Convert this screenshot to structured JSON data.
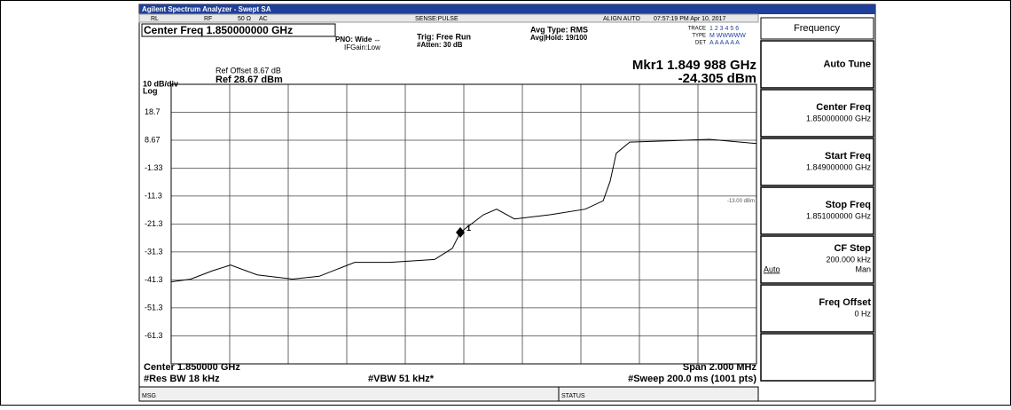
{
  "title_bar": "Agilent Spectrum Analyzer - Swept SA",
  "status_bar": {
    "rl": "RL",
    "rf": "RF",
    "impedance": "50 Ω",
    "coupling": "AC",
    "sense": "SENSE:PULSE",
    "align": "ALIGN AUTO",
    "datetime": "07:57:19 PM Apr 10, 2017"
  },
  "header": {
    "center_freq": "Center Freq 1.850000000 GHz",
    "pno": "PNO: Wide ↔",
    "ifgain": "IFGain:Low",
    "trig": "Trig: Free Run",
    "atten": "#Atten: 30 dB",
    "avg_type": "Avg Type: RMS",
    "avg_hold": "Avg|Hold: 19/100",
    "trace_label": "TRACE",
    "trace_nums": "1 2 3 4 5 6",
    "type_label": "TYPE",
    "type_val": "M WWWWW",
    "det_label": "DET",
    "det_val": "A A A A A A",
    "ref_offset": "Ref Offset 8.67 dB",
    "ref_level": "Ref 28.67 dBm",
    "scale": "10 dB/div",
    "log": "Log",
    "marker_freq": "Mkr1 1.849 988 GHz",
    "marker_amp": "-24.305 dBm"
  },
  "plot": {
    "xlim": [
      1.849,
      1.851
    ],
    "ylim": [
      -71.33,
      28.67
    ],
    "yticks": [
      18.7,
      8.67,
      -1.33,
      -11.3,
      -21.3,
      -31.3,
      -41.3,
      -51.3,
      -61.3
    ],
    "x": [
      1.849,
      1.849067,
      1.849142,
      1.849203,
      1.849294,
      1.849415,
      1.849506,
      1.849627,
      1.849748,
      1.8499,
      1.849961,
      1.849988,
      1.850067,
      1.850112,
      1.850173,
      1.850294,
      1.850415,
      1.850476,
      1.8505,
      1.850521,
      1.850567,
      1.850718,
      1.850839,
      1.851
    ],
    "values": [
      -42,
      -41,
      -38,
      -36,
      -39.5,
      -41,
      -40,
      -35,
      -35,
      -34,
      -30,
      -24.3,
      -18,
      -16,
      -19.5,
      -18,
      -16,
      -13,
      -6,
      4,
      8,
      8.5,
      9,
      7.5
    ],
    "color": "#000000",
    "marker": {
      "x": 1.849988,
      "value": -24.305,
      "label": "1"
    },
    "display_line": {
      "value": -13,
      "label": "-13.00 dBm"
    }
  },
  "footer": {
    "center": "Center 1.850000 GHz",
    "span": "Span 2.000 MHz",
    "rbw": "#Res BW 18 kHz",
    "vbw": "#VBW 51 kHz*",
    "sweep": "#Sweep 200.0 ms (1001 pts)",
    "msg": "MSG",
    "status": "STATUS"
  },
  "softkeys": {
    "menu": "Frequency",
    "keys": [
      {
        "label": "Auto Tune"
      },
      {
        "label": "Center Freq",
        "value": "1.850000000 GHz"
      },
      {
        "label": "Start Freq",
        "value": "1.849000000 GHz"
      },
      {
        "label": "Stop Freq",
        "value": "1.851000000 GHz"
      },
      {
        "label": "CF Step",
        "value": "200.000 kHz",
        "auto": "Auto",
        "man": "Man"
      },
      {
        "label": "Freq Offset",
        "value": "0 Hz"
      }
    ]
  }
}
